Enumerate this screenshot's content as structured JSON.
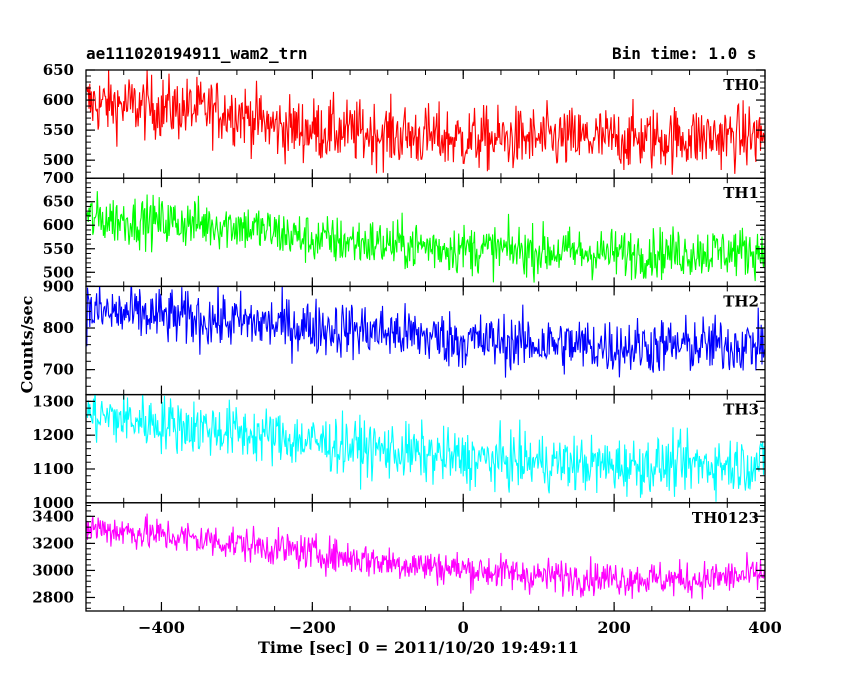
{
  "header": {
    "title": "ae111020194911_wam2_trn",
    "bin_time": "Bin time: 1.0 s"
  },
  "chart_data": {
    "type": "line",
    "xlabel": "Time [sec] 0 = 2011/10/20 19:49:11",
    "ylabel": "Counts/sec",
    "xlim": [
      -500,
      400
    ],
    "x_ticks": [
      -400,
      -200,
      0,
      200,
      400
    ],
    "x_start": -499,
    "x_end": 400,
    "x_step": 1,
    "series": [
      {
        "name": "TH0",
        "color": "#ff0000",
        "ylim": [
          470,
          650
        ],
        "y_ticks": [
          500,
          550,
          600,
          650
        ],
        "trend": [
          [
            -500,
            595
          ],
          [
            -300,
            580
          ],
          [
            -250,
            555
          ],
          [
            0,
            535
          ],
          [
            200,
            535
          ],
          [
            400,
            540
          ]
        ],
        "noise_amplitude": 35
      },
      {
        "name": "TH1",
        "color": "#00ff00",
        "ylim": [
          470,
          700
        ],
        "y_ticks": [
          500,
          550,
          600,
          650,
          700
        ],
        "trend": [
          [
            -500,
            615
          ],
          [
            -300,
            600
          ],
          [
            -200,
            570
          ],
          [
            0,
            550
          ],
          [
            200,
            540
          ],
          [
            400,
            545
          ]
        ],
        "noise_amplitude": 35
      },
      {
        "name": "TH2",
        "color": "#0000ff",
        "ylim": [
          640,
          900
        ],
        "y_ticks": [
          700,
          800,
          900
        ],
        "trend": [
          [
            -500,
            840
          ],
          [
            -300,
            815
          ],
          [
            -100,
            790
          ],
          [
            0,
            770
          ],
          [
            200,
            755
          ],
          [
            400,
            760
          ]
        ],
        "noise_amplitude": 45
      },
      {
        "name": "TH3",
        "color": "#00ffff",
        "ylim": [
          1000,
          1320
        ],
        "y_ticks": [
          1000,
          1100,
          1200,
          1300
        ],
        "trend": [
          [
            -500,
            1260
          ],
          [
            -300,
            1210
          ],
          [
            -200,
            1180
          ],
          [
            0,
            1130
          ],
          [
            200,
            1110
          ],
          [
            400,
            1115
          ]
        ],
        "noise_amplitude": 55
      },
      {
        "name": "TH0123",
        "color": "#ff00ff",
        "ylim": [
          2700,
          3500
        ],
        "y_ticks": [
          2800,
          3000,
          3200,
          3400
        ],
        "trend": [
          [
            -500,
            3320
          ],
          [
            -300,
            3200
          ],
          [
            -100,
            3060
          ],
          [
            100,
            2960
          ],
          [
            300,
            2930
          ],
          [
            400,
            2970
          ]
        ],
        "noise_amplitude": 85
      }
    ]
  }
}
